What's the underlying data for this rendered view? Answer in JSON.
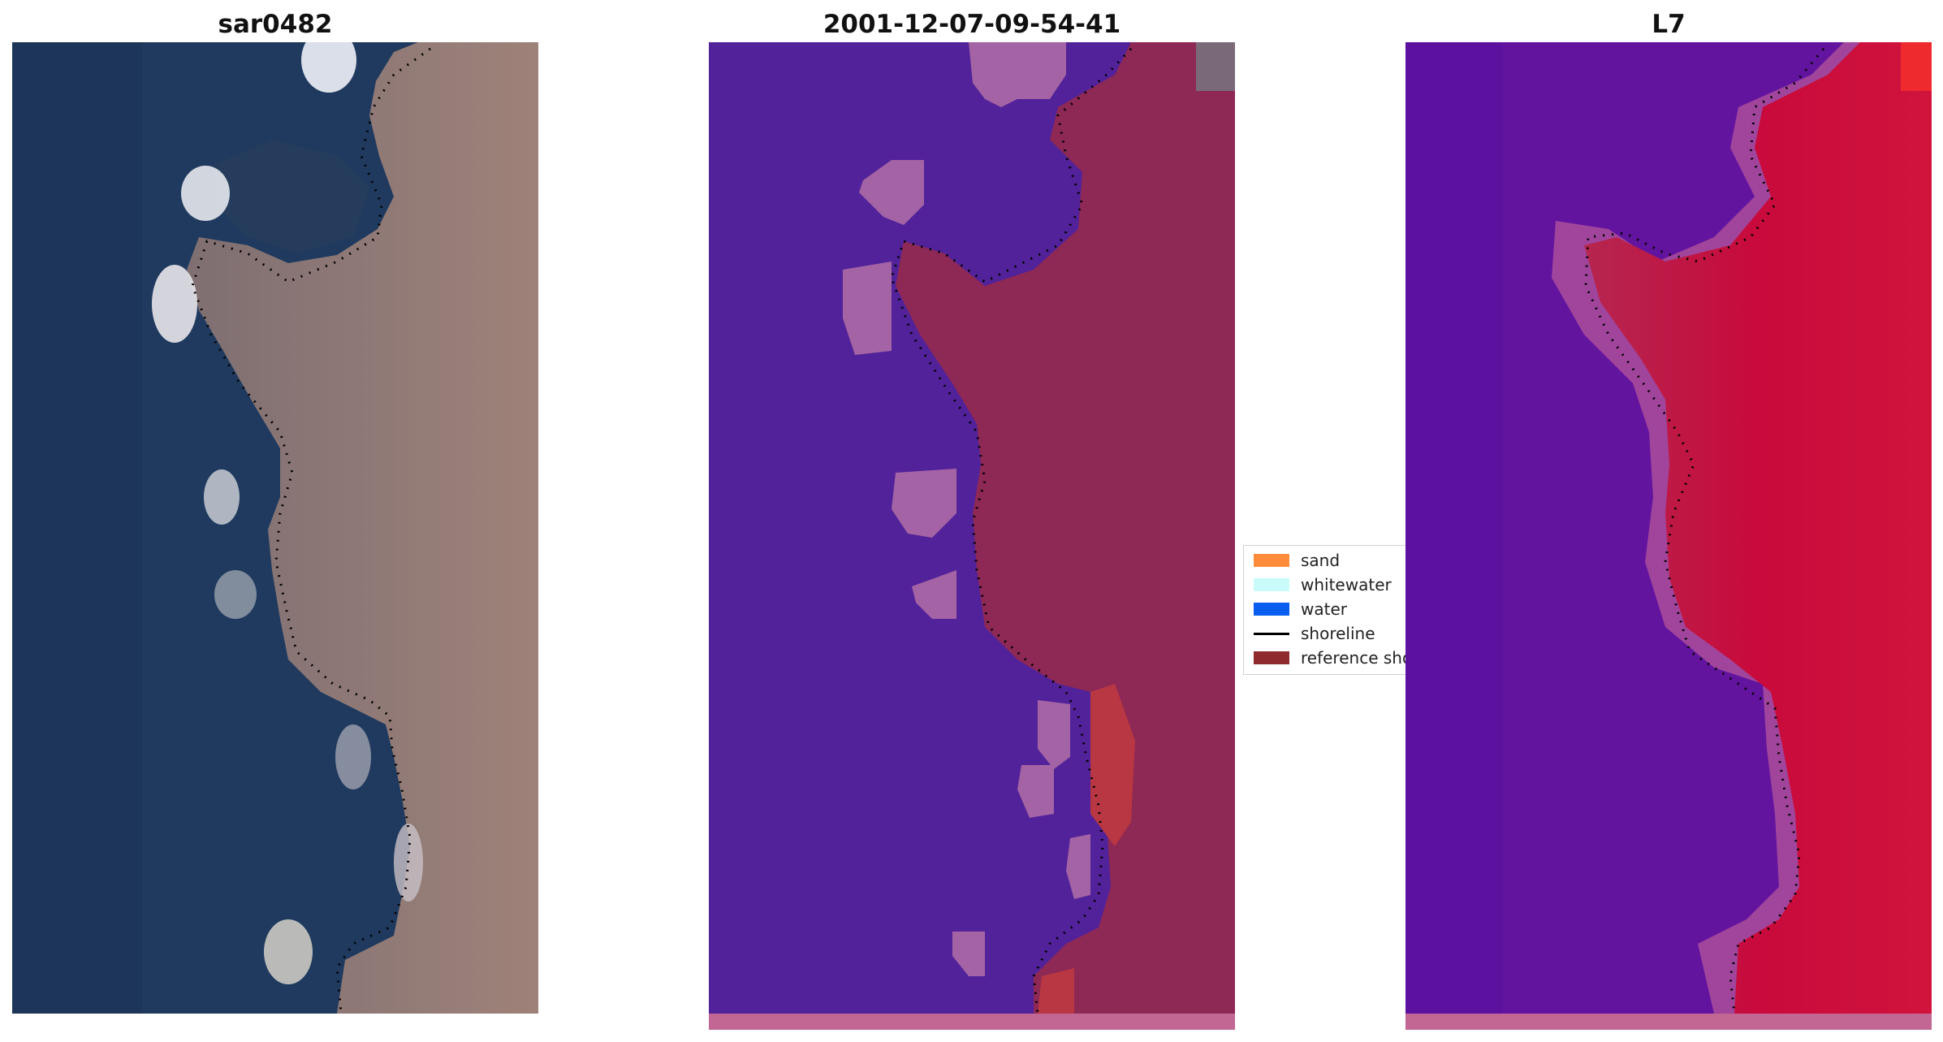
{
  "panels": [
    {
      "title": "sar0482"
    },
    {
      "title": "2001-12-07-09-54-41"
    },
    {
      "title": "L7"
    }
  ],
  "legend": {
    "items": [
      {
        "label": "sand",
        "color": "#ff8c3a",
        "kind": "patch"
      },
      {
        "label": "whitewater",
        "color": "#c8fbfa",
        "kind": "patch"
      },
      {
        "label": "water",
        "color": "#0b5ff0",
        "kind": "patch"
      },
      {
        "label": "shoreline",
        "color": "#000000",
        "kind": "line"
      },
      {
        "label": "reference shoreline",
        "color": "#8f2a2e",
        "kind": "patch"
      }
    ]
  },
  "colors": {
    "water_rgb": "#1f3a5e",
    "land_rgb": "#9b8078",
    "class_water": "#52229a",
    "class_land": "#8e2855",
    "class_blob": "#a463a4",
    "class_sand": "#b83742",
    "index_low": "#63149f",
    "index_high": "#c8063a",
    "bottom_strip": "#c26694"
  }
}
